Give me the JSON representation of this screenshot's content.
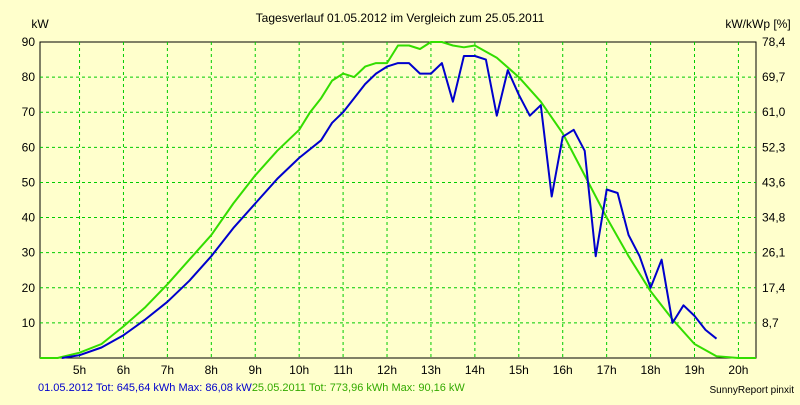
{
  "chart_data": {
    "type": "line",
    "title": "Tagesverlauf 01.05.2012 im Vergleich zum 25.05.2011",
    "ylabel_left": "kW",
    "ylabel_right": "kW/kWp [%]",
    "x_ticks": [
      "5h",
      "6h",
      "7h",
      "8h",
      "9h",
      "10h",
      "11h",
      "12h",
      "13h",
      "14h",
      "15h",
      "16h",
      "17h",
      "18h",
      "19h",
      "20h"
    ],
    "xlim": [
      4.1,
      20.4
    ],
    "ylim": [
      0,
      90
    ],
    "y_ticks": [
      10,
      20,
      30,
      40,
      50,
      60,
      70,
      80,
      90
    ],
    "y2_ticks": [
      "8,7",
      "17,4",
      "26,1",
      "34,8",
      "43,6",
      "52,3",
      "61,0",
      "69,7",
      "78,4"
    ],
    "grid": true,
    "series": [
      {
        "name": "01.05.2012",
        "color": "#0000cc",
        "x": [
          4.6,
          5.0,
          5.5,
          6.0,
          6.5,
          7.0,
          7.5,
          8.0,
          8.5,
          9.0,
          9.5,
          10.0,
          10.5,
          10.75,
          11.0,
          11.25,
          11.5,
          11.75,
          12.0,
          12.25,
          12.5,
          12.75,
          13.0,
          13.25,
          13.5,
          13.75,
          14.0,
          14.25,
          14.5,
          14.75,
          15.0,
          15.25,
          15.5,
          15.75,
          16.0,
          16.25,
          16.5,
          16.75,
          17.0,
          17.25,
          17.5,
          17.75,
          18.0,
          18.25,
          18.5,
          18.75,
          19.0,
          19.25,
          19.5
        ],
        "y": [
          0,
          0.8,
          3,
          6.5,
          11,
          16,
          22,
          29,
          37,
          44,
          51,
          57,
          62,
          67,
          70,
          74,
          78,
          81,
          83,
          84,
          84,
          81,
          81,
          84,
          73,
          86,
          86,
          85,
          69,
          82,
          75,
          69,
          72,
          46,
          63,
          65,
          59,
          29,
          48,
          47,
          35,
          29,
          20,
          28,
          10,
          15,
          12,
          8,
          5.5
        ]
      },
      {
        "name": "25.05.2011",
        "color": "#33dd00",
        "x": [
          4.1,
          4.5,
          5.0,
          5.5,
          6.0,
          6.5,
          7.0,
          7.5,
          8.0,
          8.5,
          9.0,
          9.5,
          10.0,
          10.25,
          10.5,
          10.75,
          11.0,
          11.25,
          11.5,
          11.75,
          12.0,
          12.25,
          12.5,
          12.75,
          13.0,
          13.25,
          13.5,
          13.75,
          14.0,
          14.5,
          15.0,
          15.5,
          16.0,
          16.5,
          17.0,
          17.5,
          18.0,
          18.5,
          19.0,
          19.5,
          20.0,
          20.4
        ],
        "y": [
          0,
          0,
          1.5,
          4,
          9,
          14.5,
          21,
          28,
          35,
          44,
          52,
          59,
          65,
          70,
          74,
          79,
          81,
          80,
          83,
          84,
          84,
          89,
          89,
          88,
          90,
          90,
          89,
          88.5,
          89,
          85.5,
          80,
          73,
          64,
          52,
          40,
          29,
          19,
          11,
          4,
          0.5,
          0,
          0
        ]
      }
    ],
    "footer": {
      "series1_label": "01.05.2012 Tot: 645,64 kWh Max: 86,08 kW",
      "series2_label": "25.05.2011 Tot: 773,96 kWh Max: 90,16 kW",
      "credit": "SunnyReport pinxit"
    }
  }
}
